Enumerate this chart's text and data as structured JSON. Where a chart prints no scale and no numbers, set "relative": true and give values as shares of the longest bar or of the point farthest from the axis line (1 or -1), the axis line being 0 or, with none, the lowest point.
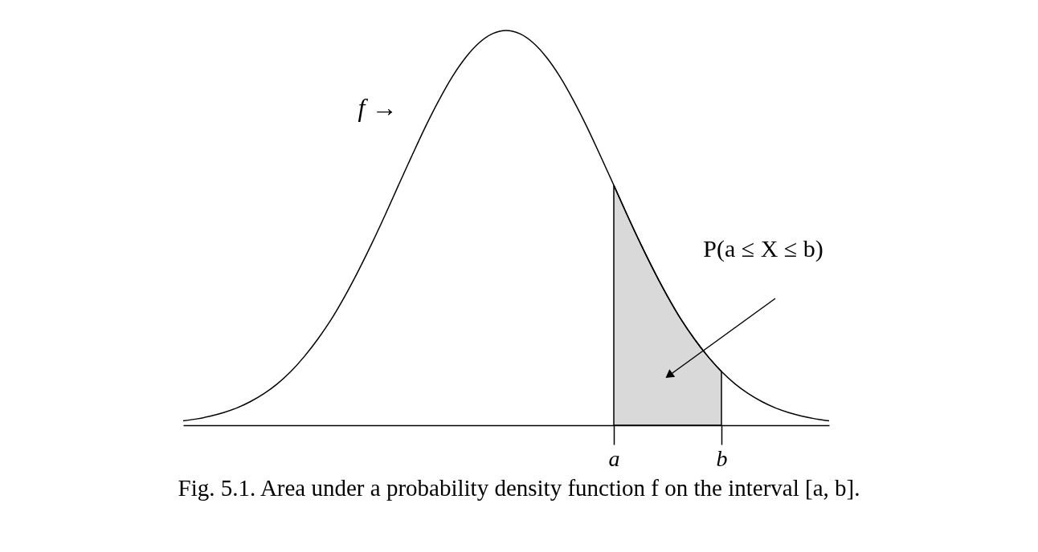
{
  "chart_data": {
    "type": "line",
    "relative": true,
    "categories": [
      null,
      null,
      null,
      null,
      null,
      null,
      null,
      null,
      null,
      null,
      null,
      null,
      null,
      null,
      null,
      null,
      null,
      null,
      null,
      null,
      null,
      null,
      null,
      null,
      null,
      null,
      null,
      null,
      null,
      null,
      null,
      null,
      "a",
      null,
      null,
      null,
      null,
      null,
      null,
      null,
      "b",
      null,
      null,
      null,
      null,
      null,
      null,
      null,
      null
    ],
    "series": [
      {
        "type": "area",
        "color": "#d9d9d9",
        "values": [
          null,
          null,
          null,
          null,
          null,
          null,
          null,
          null,
          null,
          null,
          null,
          null,
          null,
          null,
          null,
          null,
          null,
          null,
          null,
          null,
          null,
          null,
          null,
          null,
          null,
          null,
          null,
          null,
          null,
          null,
          null,
          null,
          0.608,
          0.532,
          0.459,
          0.39,
          0.326,
          0.268,
          0.218,
          0.174,
          0.136,
          null,
          null,
          null,
          null,
          null,
          null,
          null,
          null
        ]
      },
      {
        "color": "#000000",
        "values": [
          0.011,
          0.016,
          0.023,
          0.032,
          0.044,
          0.06,
          0.08,
          0.105,
          0.136,
          0.174,
          0.218,
          0.268,
          0.326,
          0.39,
          0.459,
          0.532,
          0.608,
          0.683,
          0.756,
          0.823,
          0.883,
          0.932,
          0.969,
          0.992,
          1,
          0.992,
          0.969,
          0.932,
          0.883,
          0.823,
          0.756,
          0.683,
          0.608,
          0.532,
          0.459,
          0.39,
          0.326,
          0.268,
          0.218,
          0.174,
          0.136,
          0.105,
          0.08,
          0.06,
          0.044,
          0.032,
          0.023,
          0.016,
          0.011
        ]
      }
    ],
    "annotations": [
      "f →",
      "P(a ≤ X ≤ b)",
      "Fig. 5.1. Area under a probability density function f on the interval [a, b]."
    ]
  }
}
